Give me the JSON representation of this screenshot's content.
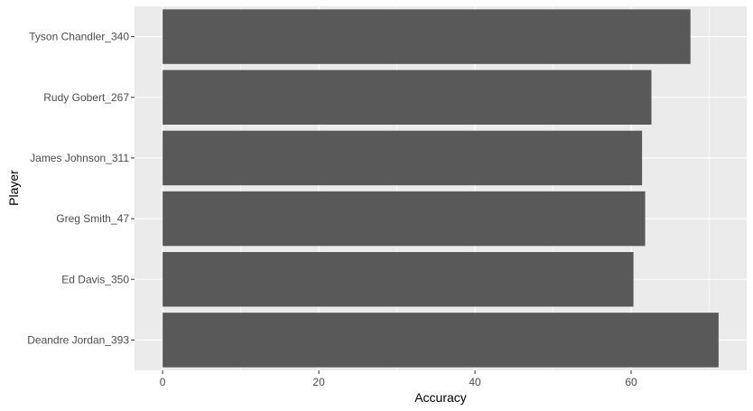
{
  "chart_data": {
    "type": "bar",
    "orientation": "horizontal",
    "categories": [
      "Deandre Jordan_393",
      "Ed Davis_350",
      "Greg Smith_47",
      "James Johnson_311",
      "Rudy Gobert_267",
      "Tyson Chandler_340"
    ],
    "values": [
      71.2,
      60.3,
      61.8,
      61.4,
      62.6,
      67.6
    ],
    "xlabel": "Accuracy",
    "ylabel": "Player",
    "xlim": [
      -3.6,
      74.8
    ],
    "xticks": [
      0,
      20,
      40,
      60
    ],
    "grid": true,
    "colors": {
      "panel": "#ebebeb",
      "grid": "#ffffff",
      "bar": "#595959",
      "tick_text": "#4d4d4d",
      "tick_mark": "#333333",
      "title_text": "#000000"
    }
  }
}
